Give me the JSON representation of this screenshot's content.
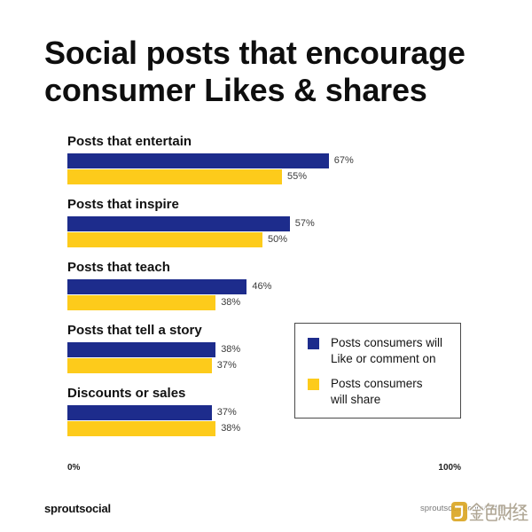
{
  "chart_data": {
    "type": "bar",
    "orientation": "horizontal",
    "title": "Social posts that encourage consumer Likes & shares",
    "categories": [
      "Posts that entertain",
      "Posts that inspire",
      "Posts that teach",
      "Posts that tell a story",
      "Discounts or sales"
    ],
    "series": [
      {
        "name": "Posts consumers will Like or comment on",
        "color": "#1d2c8c",
        "values": [
          67,
          57,
          46,
          38,
          37
        ],
        "labels": [
          "67%",
          "57%",
          "46%",
          "38%",
          "37%"
        ]
      },
      {
        "name": "Posts consumers will share",
        "color": "#fdcb1b",
        "values": [
          55,
          50,
          38,
          37,
          38
        ],
        "labels": [
          "55%",
          "50%",
          "38%",
          "37%",
          "38%"
        ]
      }
    ],
    "xlim": [
      0,
      100
    ],
    "x_tick_labels": [
      "0%",
      "100%"
    ],
    "grid": false,
    "legend": "lower-right"
  },
  "footer": {
    "logo": "sproutsocial",
    "source": "sproutsocial.com/index"
  },
  "watermark": {
    "text": "金色财经"
  }
}
